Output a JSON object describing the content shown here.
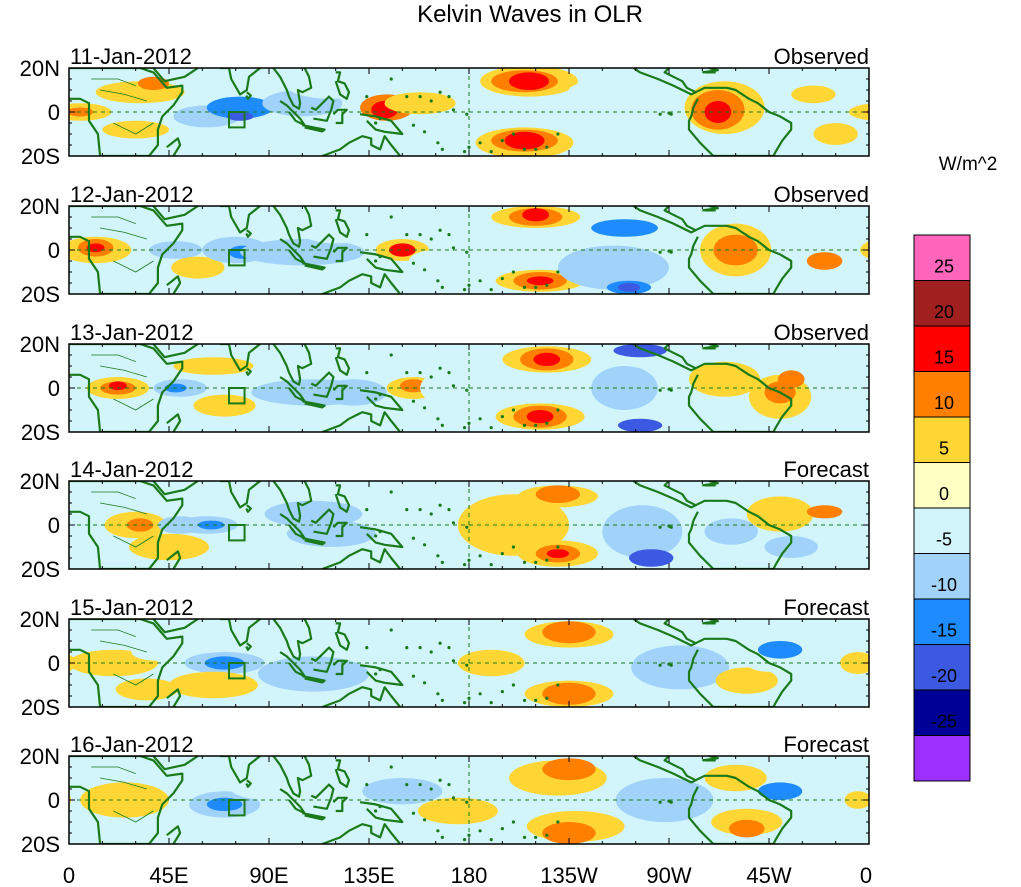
{
  "title": "Kelvin Waves in OLR",
  "units": "W/m^2",
  "panels": [
    {
      "date": "11-Jan-2012",
      "status": "Observed"
    },
    {
      "date": "12-Jan-2012",
      "status": "Observed"
    },
    {
      "date": "13-Jan-2012",
      "status": "Observed"
    },
    {
      "date": "14-Jan-2012",
      "status": "Forecast"
    },
    {
      "date": "15-Jan-2012",
      "status": "Forecast"
    },
    {
      "date": "16-Jan-2012",
      "status": "Forecast"
    }
  ],
  "lat_labels": [
    "20N",
    "0",
    "20S"
  ],
  "lon_labels": [
    "0",
    "45E",
    "90E",
    "135E",
    "180",
    "135W",
    "90W",
    "45W",
    "0"
  ],
  "colorbar": {
    "labels": [
      "25",
      "20",
      "15",
      "10",
      "5",
      "0",
      "-5",
      "-10",
      "-15",
      "-20",
      "-25"
    ],
    "colors": [
      "#ff66bb",
      "#a02020",
      "#ff0000",
      "#ff7f00",
      "#ffd633",
      "#ffffc4",
      "#d2f5fb",
      "#a0d2fa",
      "#1e8cff",
      "#3c5ae1",
      "#000096",
      "#9b30ff"
    ]
  },
  "colors": {
    "coast": "#1a7a1a",
    "background": "#ffffff"
  }
}
